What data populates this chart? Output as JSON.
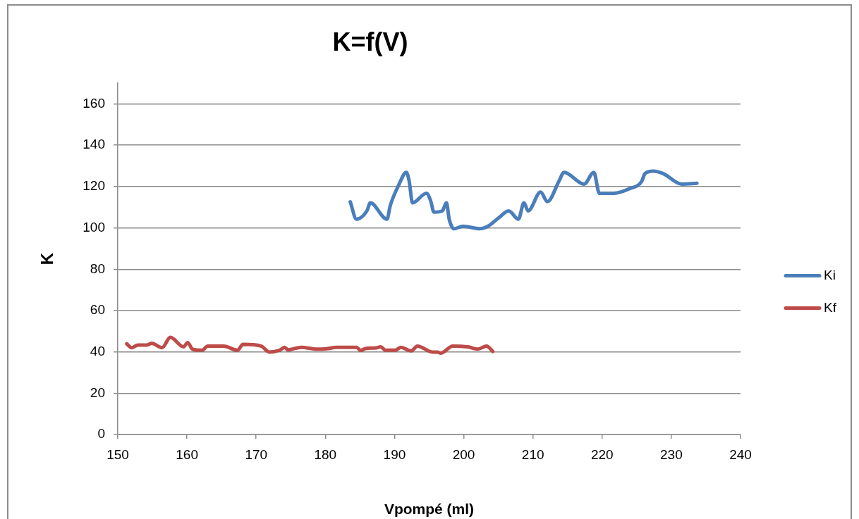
{
  "chart_data": {
    "type": "line",
    "title": "K=f(V)",
    "xlabel": "Vpompé (ml)",
    "ylabel": "K",
    "xlim": [
      150,
      240
    ],
    "xticks": [
      150,
      160,
      170,
      180,
      190,
      200,
      210,
      220,
      230,
      240
    ],
    "ylim": [
      0,
      170
    ],
    "yticks": [
      0,
      20,
      40,
      60,
      80,
      100,
      120,
      140,
      160
    ],
    "grid": "y",
    "legend": "right",
    "series": [
      {
        "name": "Ki",
        "color": "#4a7ebb",
        "x": [
          183.6,
          184.5,
          186.0,
          186.5,
          188.9,
          189.4,
          190.6,
          191.7,
          192.1,
          192.6,
          194.6,
          195.2,
          195.7,
          196.9,
          197.5,
          197.9,
          198.6,
          199.9,
          202.3,
          203.5,
          205.0,
          206.5,
          207.9,
          208.7,
          209.3,
          211.1,
          212.1,
          213.8,
          214.5,
          217.4,
          218.8,
          219.6,
          221.7,
          224.0,
          225.7,
          226.2,
          227.4,
          228.8,
          231.5,
          233.7
        ],
        "values": [
          112.6,
          104.2,
          108.2,
          112.1,
          104.2,
          111.0,
          120.7,
          126.9,
          122.9,
          112.1,
          116.7,
          113.3,
          107.6,
          108.2,
          112.1,
          104.2,
          99.6,
          100.8,
          99.6,
          100.8,
          104.7,
          108.2,
          104.2,
          112.1,
          108.2,
          117.3,
          112.7,
          122.9,
          126.9,
          121.2,
          126.9,
          116.7,
          116.7,
          119.0,
          122.4,
          126.3,
          127.5,
          126.3,
          121.2,
          121.6
        ]
      },
      {
        "name": "Kf",
        "color": "#be4b48",
        "x": [
          151.3,
          152.0,
          152.9,
          154.2,
          154.9,
          156.4,
          157.6,
          159.5,
          160.1,
          160.8,
          162.2,
          163.0,
          165.3,
          167.3,
          168.1,
          170.7,
          171.9,
          173.4,
          174.1,
          174.6,
          176.5,
          178.8,
          180.2,
          181.6,
          184.5,
          185.1,
          185.8,
          187.3,
          188.0,
          188.7,
          190.1,
          190.9,
          192.4,
          193.3,
          195.5,
          196.2,
          196.7,
          198.4,
          200.6,
          202.0,
          203.3,
          204.2
        ],
        "values": [
          43.9,
          42.0,
          43.3,
          43.3,
          44.1,
          42.0,
          47.0,
          42.4,
          44.5,
          41.3,
          40.8,
          42.8,
          42.8,
          40.8,
          43.6,
          42.8,
          39.9,
          40.8,
          42.2,
          41.0,
          42.2,
          41.3,
          41.5,
          42.2,
          42.2,
          40.7,
          41.6,
          41.9,
          42.4,
          40.8,
          40.8,
          42.2,
          40.5,
          42.8,
          39.9,
          39.9,
          39.4,
          42.8,
          42.4,
          41.3,
          42.8,
          40.2
        ]
      }
    ]
  }
}
